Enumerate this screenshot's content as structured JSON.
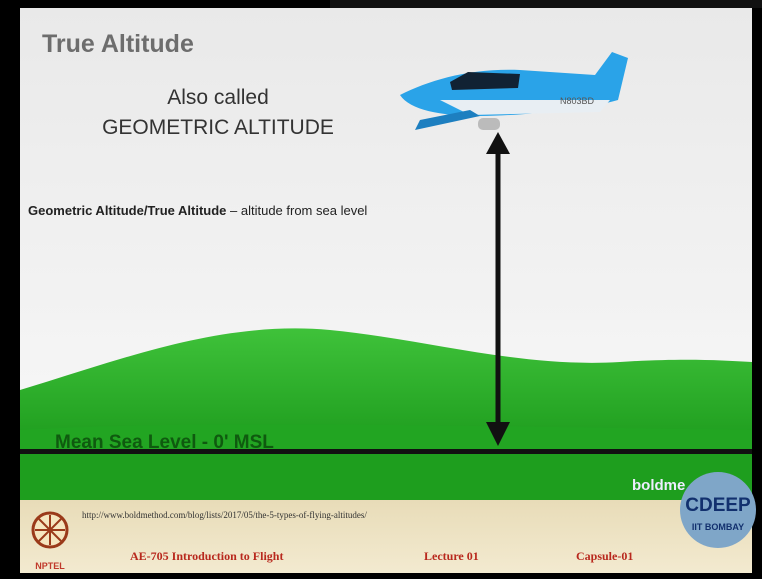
{
  "slide": {
    "title": "True Altitude",
    "also_called": "Also called",
    "alt_name": "GEOMETRIC ALTITUDE",
    "definition_term": "Geometric Altitude/True Altitude",
    "definition_text": "– altitude from sea level",
    "aircraft_registration": "N803BD",
    "sea_level_label": "Mean Sea Level - 0' MSL",
    "watermark": "boldme"
  },
  "footer": {
    "url": "http://www.boldmethod.com/blog/lists/2017/05/the-5-types-of-flying-altitudes/",
    "course": "AE-705 Introduction to Flight",
    "lecture": "Lecture 01",
    "capsule": "Capsule-01",
    "left_logo": "NPTEL",
    "right_logo": "CDEEP",
    "right_logo_sub": "IIT BOMBAY"
  }
}
